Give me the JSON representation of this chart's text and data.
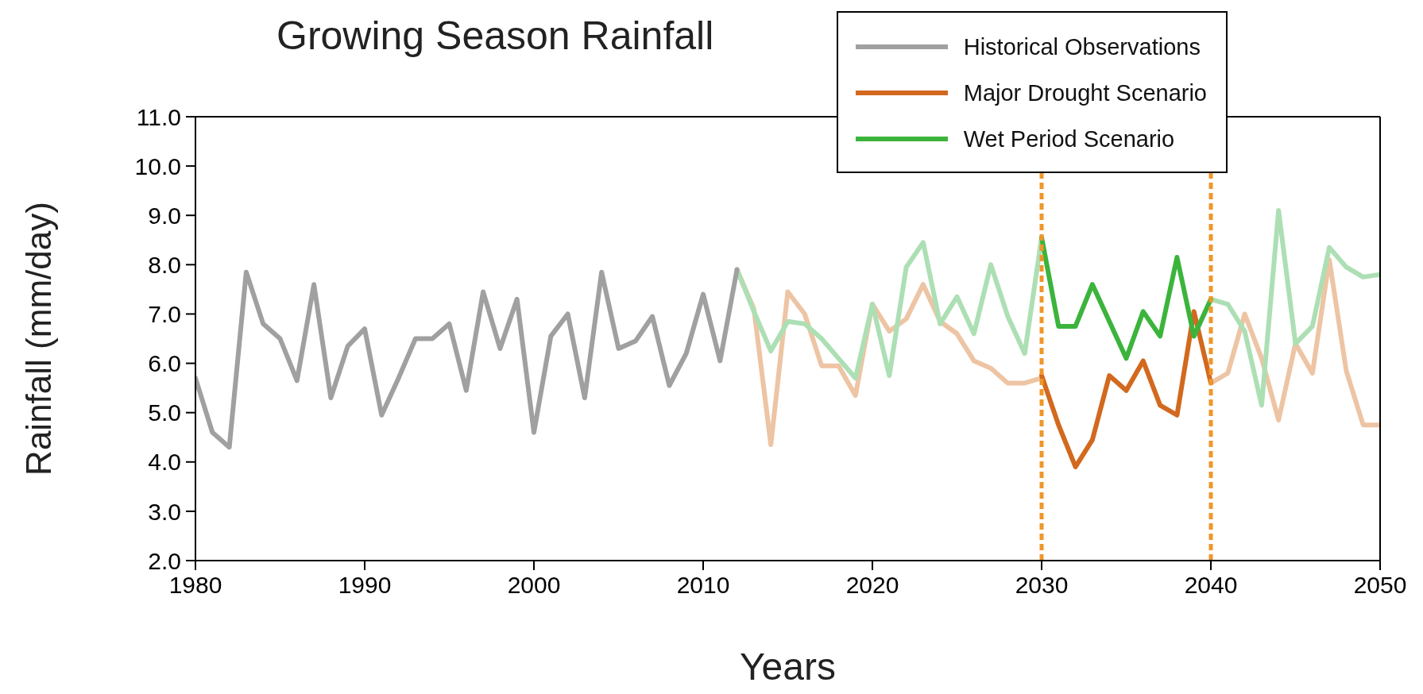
{
  "chart_data": {
    "type": "line",
    "title": "Growing Season Rainfall",
    "xlabel": "Years",
    "ylabel": "Rainfall (mm/day)",
    "xlim": [
      1980,
      2050
    ],
    "xticks": [
      1980,
      1990,
      2000,
      2010,
      2020,
      2030,
      2040,
      2050
    ],
    "ylim": [
      2,
      11
    ],
    "yticks": [
      {
        "value": 2,
        "label": "2.0"
      },
      {
        "value": 3,
        "label": "3.0"
      },
      {
        "value": 4,
        "label": "4.0"
      },
      {
        "value": 5,
        "label": "5.0"
      },
      {
        "value": 6,
        "label": "6.0"
      },
      {
        "value": 7,
        "label": "7.0"
      },
      {
        "value": 8,
        "label": "8.0"
      },
      {
        "value": 9,
        "label": "9.0"
      },
      {
        "value": 10,
        "label": "10.0"
      },
      {
        "value": 11,
        "label": "11.0"
      }
    ],
    "legend": "top right",
    "marker": "none",
    "line_style": "solid",
    "series": [
      {
        "color": "#edc4a4",
        "x": [
          2012,
          2013,
          2014,
          2015,
          2016,
          2017,
          2018,
          2019,
          2020,
          2021,
          2022,
          2023,
          2024,
          2025,
          2026,
          2027,
          2028,
          2029,
          2030
        ],
        "values": [
          7.9,
          7.1,
          4.35,
          7.45,
          7.0,
          5.95,
          5.95,
          5.35,
          7.2,
          6.65,
          6.9,
          7.6,
          6.85,
          6.6,
          6.05,
          5.9,
          5.6,
          5.6,
          5.7
        ]
      },
      {
        "color": "#edc4a4",
        "x": [
          2040,
          2041,
          2042,
          2043,
          2044,
          2045,
          2046,
          2047,
          2048,
          2049,
          2050
        ],
        "values": [
          5.6,
          5.8,
          7.0,
          6.1,
          4.85,
          6.4,
          5.8,
          8.1,
          5.85,
          4.75,
          4.75
        ]
      },
      {
        "color": "#addfb4",
        "x": [
          2012,
          2013,
          2014,
          2015,
          2016,
          2017,
          2018,
          2019,
          2020,
          2021,
          2022,
          2023,
          2024,
          2025,
          2026,
          2027,
          2028,
          2029,
          2030
        ],
        "values": [
          7.9,
          7.05,
          6.25,
          6.85,
          6.8,
          6.5,
          6.1,
          5.7,
          7.2,
          5.75,
          7.95,
          8.45,
          6.8,
          7.35,
          6.6,
          8.0,
          6.95,
          6.2,
          8.55
        ]
      },
      {
        "color": "#addfb4",
        "x": [
          2040,
          2041,
          2042,
          2043,
          2044,
          2045,
          2046,
          2047,
          2048,
          2049,
          2050
        ],
        "values": [
          7.3,
          7.2,
          6.65,
          5.15,
          9.1,
          6.4,
          6.75,
          8.35,
          7.95,
          7.75,
          7.8
        ]
      },
      {
        "name": "Historical Observations",
        "color": "#a0a0a0",
        "x": [
          1980,
          1981,
          1982,
          1983,
          1984,
          1985,
          1986,
          1987,
          1988,
          1989,
          1990,
          1991,
          1992,
          1993,
          1994,
          1995,
          1996,
          1997,
          1998,
          1999,
          2000,
          2001,
          2002,
          2003,
          2004,
          2005,
          2006,
          2007,
          2008,
          2009,
          2010,
          2011,
          2012
        ],
        "values": [
          5.7,
          4.6,
          4.3,
          7.85,
          6.8,
          6.5,
          5.65,
          7.6,
          5.3,
          6.35,
          6.7,
          4.95,
          5.7,
          6.5,
          6.5,
          6.8,
          5.45,
          7.45,
          6.3,
          7.3,
          4.6,
          6.55,
          7.0,
          5.3,
          7.85,
          6.3,
          6.45,
          6.95,
          5.55,
          6.2,
          7.4,
          6.05,
          7.9
        ]
      },
      {
        "name": "Major Drought Scenario",
        "color": "#d2691e",
        "x": [
          2030,
          2031,
          2032,
          2033,
          2034,
          2035,
          2036,
          2037,
          2038,
          2039,
          2040
        ],
        "values": [
          5.75,
          4.75,
          3.9,
          4.45,
          5.75,
          5.45,
          6.05,
          5.15,
          4.95,
          7.05,
          5.6
        ]
      },
      {
        "name": "Wet Period Scenario",
        "color": "#3cb43c",
        "x": [
          2030,
          2031,
          2032,
          2033,
          2034,
          2035,
          2036,
          2037,
          2038,
          2039,
          2040
        ],
        "values": [
          8.55,
          6.75,
          6.75,
          7.6,
          6.85,
          6.1,
          7.05,
          6.55,
          8.15,
          6.55,
          7.3
        ]
      }
    ],
    "ref_lines": [
      {
        "axis": "x",
        "value": 2030,
        "color": "#f0962a",
        "line_style": "dashed"
      },
      {
        "axis": "x",
        "value": 2040,
        "color": "#f0962a",
        "line_style": "dashed"
      }
    ]
  }
}
